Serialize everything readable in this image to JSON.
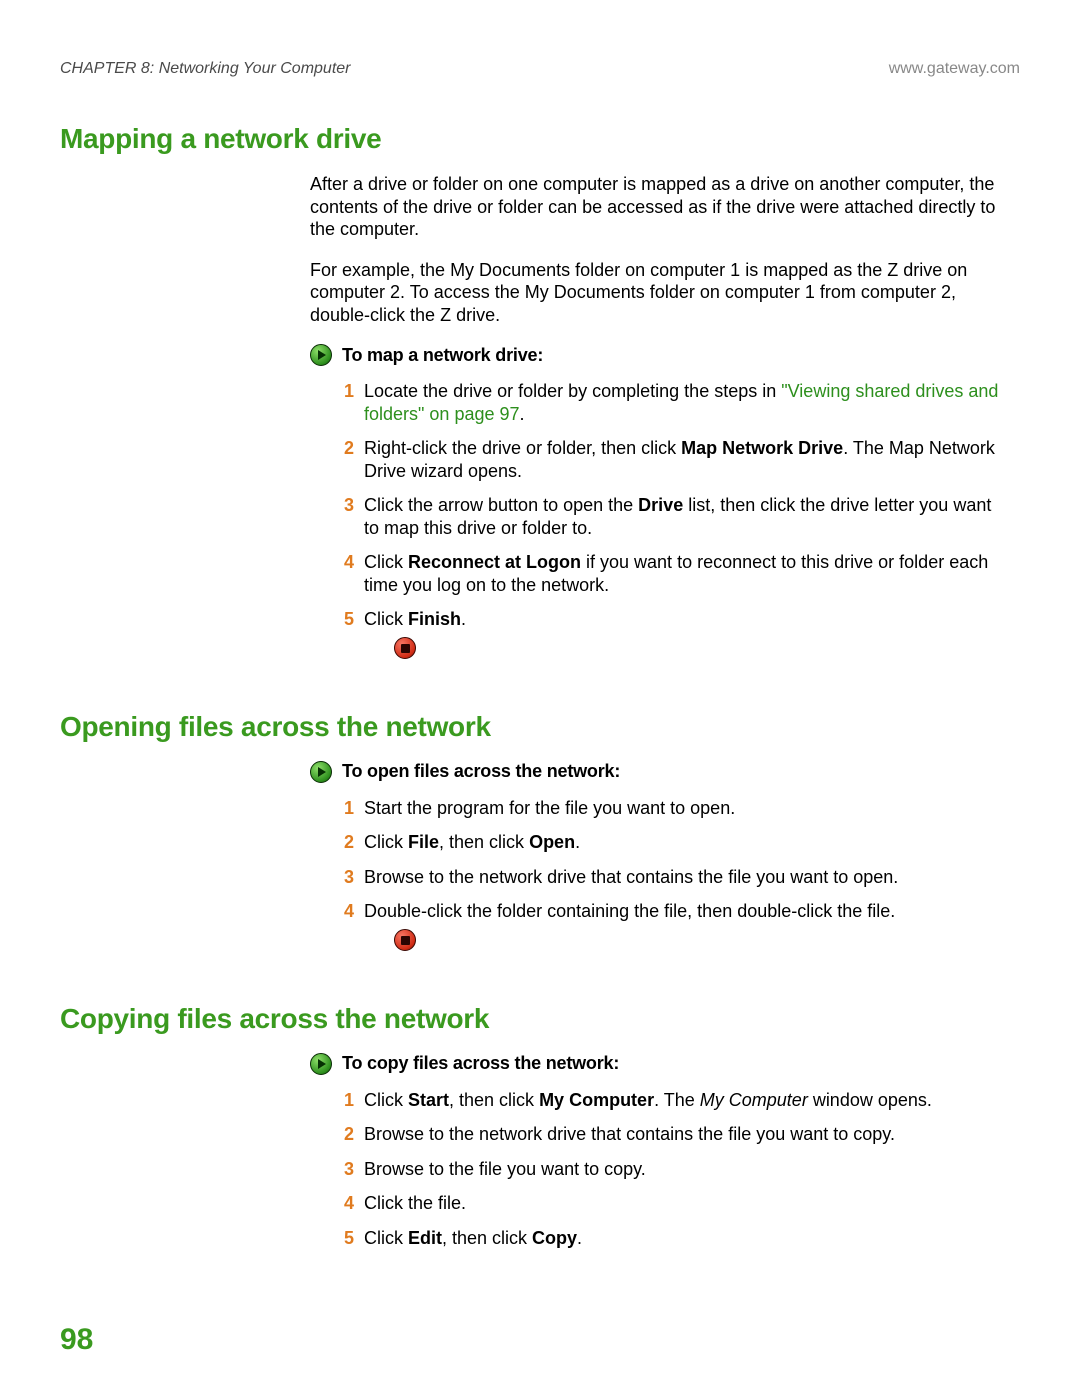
{
  "header": {
    "chapter": "CHAPTER 8: Networking Your Computer",
    "url": "www.gateway.com"
  },
  "colors": {
    "heading_green": "#3a9a1f",
    "step_orange": "#e07b1f",
    "link_green": "#2d8f1d",
    "body_text": "#000000",
    "header_text": "#4a4a4a"
  },
  "typography": {
    "heading_fontsize": 28,
    "body_fontsize": 18,
    "proc_head_fontsize": 18,
    "page_num_fontsize": 30
  },
  "page_number": "98",
  "sections": [
    {
      "title": "Mapping a network drive",
      "paragraphs": [
        "After a drive or folder on one computer is mapped as a drive on another computer, the contents of the drive or folder can be accessed as if the drive were attached directly to the computer.",
        "For example, the My Documents folder on computer 1 is mapped as the Z drive on computer 2. To access the My Documents folder on computer 1 from computer 2, double-click the Z drive."
      ],
      "procedure": {
        "heading": "To map a network drive:",
        "steps": [
          {
            "n": "1",
            "pre": "Locate the drive or folder by completing the steps in ",
            "link": "\"Viewing shared drives and folders\" on page 97",
            "post": "."
          },
          {
            "n": "2",
            "pre": "Right-click the drive or folder, then click ",
            "b1": "Map Network Drive",
            "post": ". The Map Network Drive wizard opens."
          },
          {
            "n": "3",
            "pre": "Click the arrow button to open the ",
            "b1": "Drive",
            "post": " list, then click the drive letter you want to map this drive or folder to."
          },
          {
            "n": "4",
            "pre": "Click ",
            "b1": "Reconnect at Logon",
            "post": " if you want to reconnect to this drive or folder each time you log on to the network."
          },
          {
            "n": "5",
            "pre": "Click ",
            "b1": "Finish",
            "post": "."
          }
        ]
      }
    },
    {
      "title": "Opening files across the network",
      "paragraphs": [],
      "procedure": {
        "heading": "To open files across the network:",
        "steps": [
          {
            "n": "1",
            "pre": "Start the program for the file you want to open."
          },
          {
            "n": "2",
            "pre": "Click ",
            "b1": "File",
            "mid": ", then click ",
            "b2": "Open",
            "post": "."
          },
          {
            "n": "3",
            "pre": "Browse to the network drive that contains the file you want to open."
          },
          {
            "n": "4",
            "pre": "Double-click the folder containing the file, then double-click the file."
          }
        ]
      }
    },
    {
      "title": "Copying files across the network",
      "paragraphs": [],
      "procedure": {
        "heading": "To copy files across the network:",
        "steps": [
          {
            "n": "1",
            "pre": "Click ",
            "b1": "Start",
            "mid": ", then click ",
            "b2": "My Computer",
            "post": ". The ",
            "i1": "My Computer",
            "post2": " window opens."
          },
          {
            "n": "2",
            "pre": "Browse to the network drive that contains the file you want to copy."
          },
          {
            "n": "3",
            "pre": "Browse to the file you want to copy."
          },
          {
            "n": "4",
            "pre": "Click the file."
          },
          {
            "n": "5",
            "pre": "Click ",
            "b1": "Edit",
            "mid": ", then click ",
            "b2": "Copy",
            "post": "."
          }
        ]
      }
    }
  ]
}
